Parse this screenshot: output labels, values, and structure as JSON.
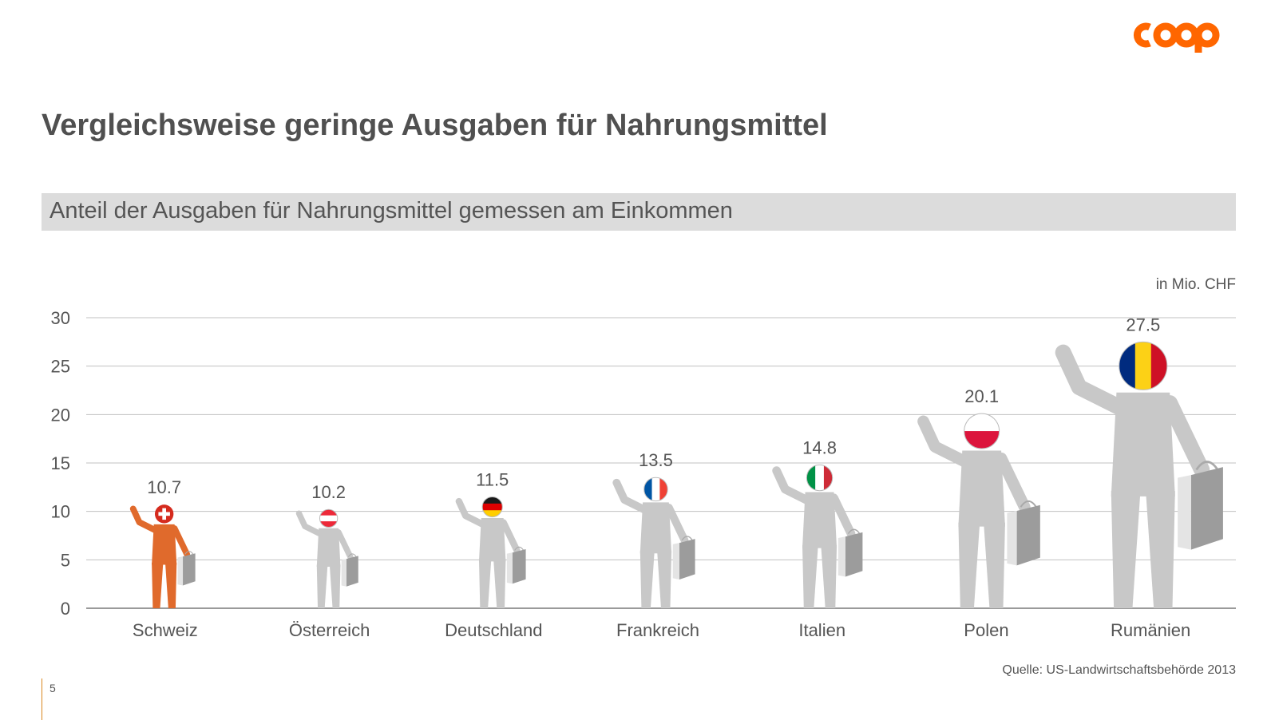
{
  "brand": {
    "logo_text": "coop",
    "logo_color": "#ff6600"
  },
  "title": "Vergleichsweise geringe Ausgaben für Nahrungsmittel",
  "subtitle": "Anteil der Ausgaben für Nahrungsmittel gemessen am Einkommen",
  "unit_label": "in Mio. CHF",
  "source": "Quelle: US-Landwirtschaftsbehörde 2013",
  "page_number": "5",
  "colors": {
    "highlight": "#e06a2c",
    "figure": "#c8c8c8",
    "grid": "#c0c0c0",
    "accent_line": "#d9861e"
  },
  "chart_data": {
    "type": "bar",
    "title": "Anteil der Ausgaben für Nahrungsmittel gemessen am Einkommen",
    "ylabel": "in Mio. CHF",
    "xlabel": "",
    "ylim": [
      0,
      30
    ],
    "yticks": [
      0,
      5,
      10,
      15,
      20,
      25,
      30
    ],
    "grid": true,
    "categories": [
      "Schweiz",
      "Österreich",
      "Deutschland",
      "Frankreich",
      "Italien",
      "Polen",
      "Rumänien"
    ],
    "values": [
      10.7,
      10.2,
      11.5,
      13.5,
      14.8,
      20.1,
      27.5
    ],
    "value_labels": [
      "10.7",
      "10.2",
      "11.5",
      "13.5",
      "14.8",
      "20.1",
      "27.5"
    ],
    "highlighted": "Schweiz",
    "flags": [
      "switzerland",
      "austria",
      "germany",
      "france",
      "italy",
      "poland",
      "romania"
    ]
  }
}
